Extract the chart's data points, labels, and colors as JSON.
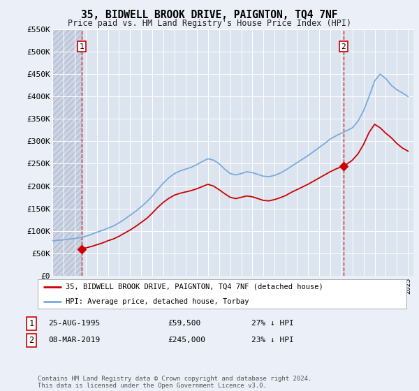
{
  "title": "35, BIDWELL BROOK DRIVE, PAIGNTON, TQ4 7NF",
  "subtitle": "Price paid vs. HM Land Registry's House Price Index (HPI)",
  "legend_line1": "35, BIDWELL BROOK DRIVE, PAIGNTON, TQ4 7NF (detached house)",
  "legend_line2": "HPI: Average price, detached house, Torbay",
  "point1_date": "25-AUG-1995",
  "point1_price": "£59,500",
  "point1_hpi": "27% ↓ HPI",
  "point1_year": 1995.65,
  "point1_value": 59500,
  "point2_date": "08-MAR-2019",
  "point2_price": "£245,000",
  "point2_hpi": "23% ↓ HPI",
  "point2_year": 2019.19,
  "point2_value": 245000,
  "footer": "Contains HM Land Registry data © Crown copyright and database right 2024.\nThis data is licensed under the Open Government Licence v3.0.",
  "ylim": [
    0,
    550000
  ],
  "yticks": [
    0,
    50000,
    100000,
    150000,
    200000,
    250000,
    300000,
    350000,
    400000,
    450000,
    500000,
    550000
  ],
  "ytick_labels": [
    "£0",
    "£50K",
    "£100K",
    "£150K",
    "£200K",
    "£250K",
    "£300K",
    "£350K",
    "£400K",
    "£450K",
    "£500K",
    "£550K"
  ],
  "xlim_start": 1993.0,
  "xlim_end": 2025.5,
  "hatch_end_year": 1995.65,
  "bg_color": "#eaeff8",
  "plot_bg": "#dce4f0",
  "grid_color": "#ffffff",
  "red_color": "#cc0000",
  "blue_color": "#7aaadd",
  "hatch_color": "#ccd4e4",
  "hpi_years": [
    1993,
    1993.5,
    1994,
    1994.5,
    1995,
    1995.5,
    1996,
    1996.5,
    1997,
    1997.5,
    1998,
    1998.5,
    1999,
    1999.5,
    2000,
    2000.5,
    2001,
    2001.5,
    2002,
    2002.5,
    2003,
    2003.5,
    2004,
    2004.5,
    2005,
    2005.5,
    2006,
    2006.5,
    2007,
    2007.5,
    2008,
    2008.5,
    2009,
    2009.5,
    2010,
    2010.5,
    2011,
    2011.5,
    2012,
    2012.5,
    2013,
    2013.5,
    2014,
    2014.5,
    2015,
    2015.5,
    2016,
    2016.5,
    2017,
    2017.5,
    2018,
    2018.5,
    2019,
    2019.5,
    2020,
    2020.5,
    2021,
    2021.5,
    2022,
    2022.5,
    2023,
    2023.5,
    2024,
    2024.5,
    2025
  ],
  "hpi_values": [
    78000,
    79000,
    80000,
    81500,
    83000,
    85000,
    88000,
    92000,
    97000,
    101000,
    106000,
    111000,
    118000,
    126000,
    135000,
    144000,
    154000,
    165000,
    178000,
    193000,
    207000,
    219000,
    228000,
    234000,
    238000,
    242000,
    248000,
    255000,
    261000,
    258000,
    250000,
    238000,
    228000,
    225000,
    228000,
    232000,
    230000,
    226000,
    222000,
    221000,
    224000,
    229000,
    236000,
    244000,
    252000,
    260000,
    268000,
    277000,
    286000,
    295000,
    305000,
    312000,
    318000,
    324000,
    330000,
    345000,
    368000,
    400000,
    435000,
    450000,
    440000,
    425000,
    415000,
    408000,
    400000
  ],
  "red_years": [
    1995.65,
    1996,
    1996.5,
    1997,
    1997.5,
    1998,
    1998.5,
    1999,
    1999.5,
    2000,
    2000.5,
    2001,
    2001.5,
    2002,
    2002.5,
    2003,
    2003.5,
    2004,
    2004.5,
    2005,
    2005.5,
    2006,
    2006.5,
    2007,
    2007.5,
    2008,
    2008.5,
    2009,
    2009.5,
    2010,
    2010.5,
    2011,
    2011.5,
    2012,
    2012.5,
    2013,
    2013.5,
    2014,
    2014.5,
    2015,
    2015.5,
    2016,
    2016.5,
    2017,
    2017.5,
    2018,
    2018.5,
    2019,
    2019.19,
    2019.5,
    2020,
    2020.5,
    2021,
    2021.5,
    2022,
    2022.5,
    2023,
    2023.5,
    2024,
    2024.5,
    2025
  ],
  "red_values": [
    59500,
    62000,
    65000,
    69000,
    73000,
    78000,
    82000,
    88000,
    95000,
    102000,
    110000,
    119000,
    128000,
    140000,
    153000,
    164000,
    173000,
    180000,
    184000,
    187000,
    190000,
    194000,
    199000,
    204000,
    200000,
    192000,
    183000,
    175000,
    172000,
    175000,
    178000,
    176000,
    172000,
    168000,
    167000,
    170000,
    174000,
    179000,
    186000,
    192000,
    198000,
    204000,
    211000,
    218000,
    225000,
    232000,
    238000,
    243000,
    245000,
    249000,
    258000,
    272000,
    293000,
    320000,
    338000,
    330000,
    318000,
    308000,
    295000,
    285000,
    278000
  ]
}
